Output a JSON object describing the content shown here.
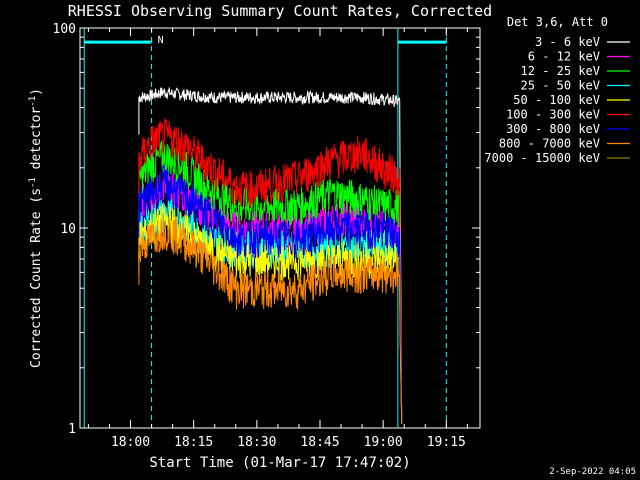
{
  "chart_data": {
    "type": "line",
    "title": "RHESSI Observing Summary Count Rates, Corrected",
    "xlabel": "Start Time (01-Mar-17 17:47:02)",
    "ylabel_main": "Corrected Count Rate (s",
    "ylabel_sup1": "-1",
    "ylabel_mid": " detector",
    "ylabel_sup2": "-1",
    "ylabel_end": ")",
    "yscale": "log",
    "ylim": [
      1,
      100
    ],
    "xlim_minutes": [
      -12.0,
      83.0
    ],
    "x_tick_labels": [
      "18:00",
      "18:15",
      "18:30",
      "18:45",
      "19:00",
      "19:15"
    ],
    "x_tick_minutes": [
      0,
      15,
      30,
      45,
      60,
      75
    ],
    "y_tick_labels": [
      "1",
      "10",
      "100"
    ],
    "y_tick_values": [
      1,
      10,
      100
    ],
    "legend_title": "Det 3,6, Att 0",
    "legend_placement": "top-right outside",
    "series": [
      {
        "name": "3 - 6 keV",
        "color": "#ffffff",
        "x": [
          2,
          5,
          8,
          10,
          15,
          20,
          25,
          30,
          35,
          40,
          45,
          50,
          55,
          60,
          64
        ],
        "y": [
          45,
          46,
          48,
          47,
          46,
          45,
          45,
          45,
          45,
          45,
          45,
          45,
          45,
          44,
          43
        ]
      },
      {
        "name": "6 - 12 keV",
        "color": "#ff00ff",
        "x": [
          2,
          5,
          8,
          12,
          18,
          25,
          30,
          40,
          48,
          55,
          60,
          64
        ],
        "y": [
          13,
          15,
          16,
          15,
          12,
          10,
          10,
          10,
          11,
          11,
          10,
          10
        ]
      },
      {
        "name": "12 - 25 keV",
        "color": "#00ff00",
        "x": [
          2,
          5,
          8,
          12,
          18,
          25,
          30,
          40,
          48,
          55,
          60,
          64
        ],
        "y": [
          17,
          21,
          23,
          21,
          16,
          13,
          13,
          13,
          15,
          14,
          13,
          13
        ]
      },
      {
        "name": "25 - 50 keV",
        "color": "#00ffff",
        "x": [
          2,
          5,
          8,
          12,
          18,
          25,
          30,
          40,
          48,
          55,
          60,
          64
        ],
        "y": [
          10,
          11,
          12,
          11,
          9,
          8,
          8,
          8,
          8,
          8,
          8,
          8
        ]
      },
      {
        "name": "50 - 100 keV",
        "color": "#ffff00",
        "x": [
          2,
          5,
          8,
          12,
          18,
          25,
          30,
          40,
          48,
          55,
          60,
          64
        ],
        "y": [
          9,
          10,
          11,
          10,
          8,
          7,
          7,
          7,
          7,
          7,
          7,
          7
        ]
      },
      {
        "name": "100 - 300 keV",
        "color": "#ff0000",
        "x": [
          2,
          5,
          8,
          12,
          18,
          25,
          30,
          40,
          48,
          55,
          60,
          64
        ],
        "y": [
          22,
          27,
          29,
          27,
          21,
          16,
          16,
          18,
          22,
          24,
          20,
          18
        ]
      },
      {
        "name": "300 - 800 keV",
        "color": "#0000ff",
        "x": [
          2,
          5,
          8,
          12,
          18,
          25,
          30,
          40,
          48,
          55,
          60,
          64
        ],
        "y": [
          13,
          15,
          17,
          15,
          12,
          9,
          9,
          9,
          10,
          10,
          10,
          9
        ]
      },
      {
        "name": "800 - 7000 keV",
        "color": "#ff8800",
        "x": [
          2,
          5,
          8,
          12,
          18,
          25,
          30,
          40,
          48,
          55,
          60,
          64
        ],
        "y": [
          8,
          9,
          10,
          9,
          7,
          5,
          5,
          5,
          6,
          6,
          6,
          6
        ]
      },
      {
        "name": "7000 - 15000 keV",
        "color": "#808000",
        "x": [],
        "y": []
      }
    ],
    "markers": {
      "n_label": "N",
      "dashed_x_minutes": [
        5.0,
        75.0
      ],
      "solid_x_minutes": [
        -11.0,
        63.5
      ],
      "saa_bar_y": 85,
      "bar1_minutes": [
        -11.0,
        5.0
      ],
      "bar2_minutes": [
        63.5,
        75.0
      ]
    },
    "footer_date": "2-Sep-2022 04:05"
  }
}
